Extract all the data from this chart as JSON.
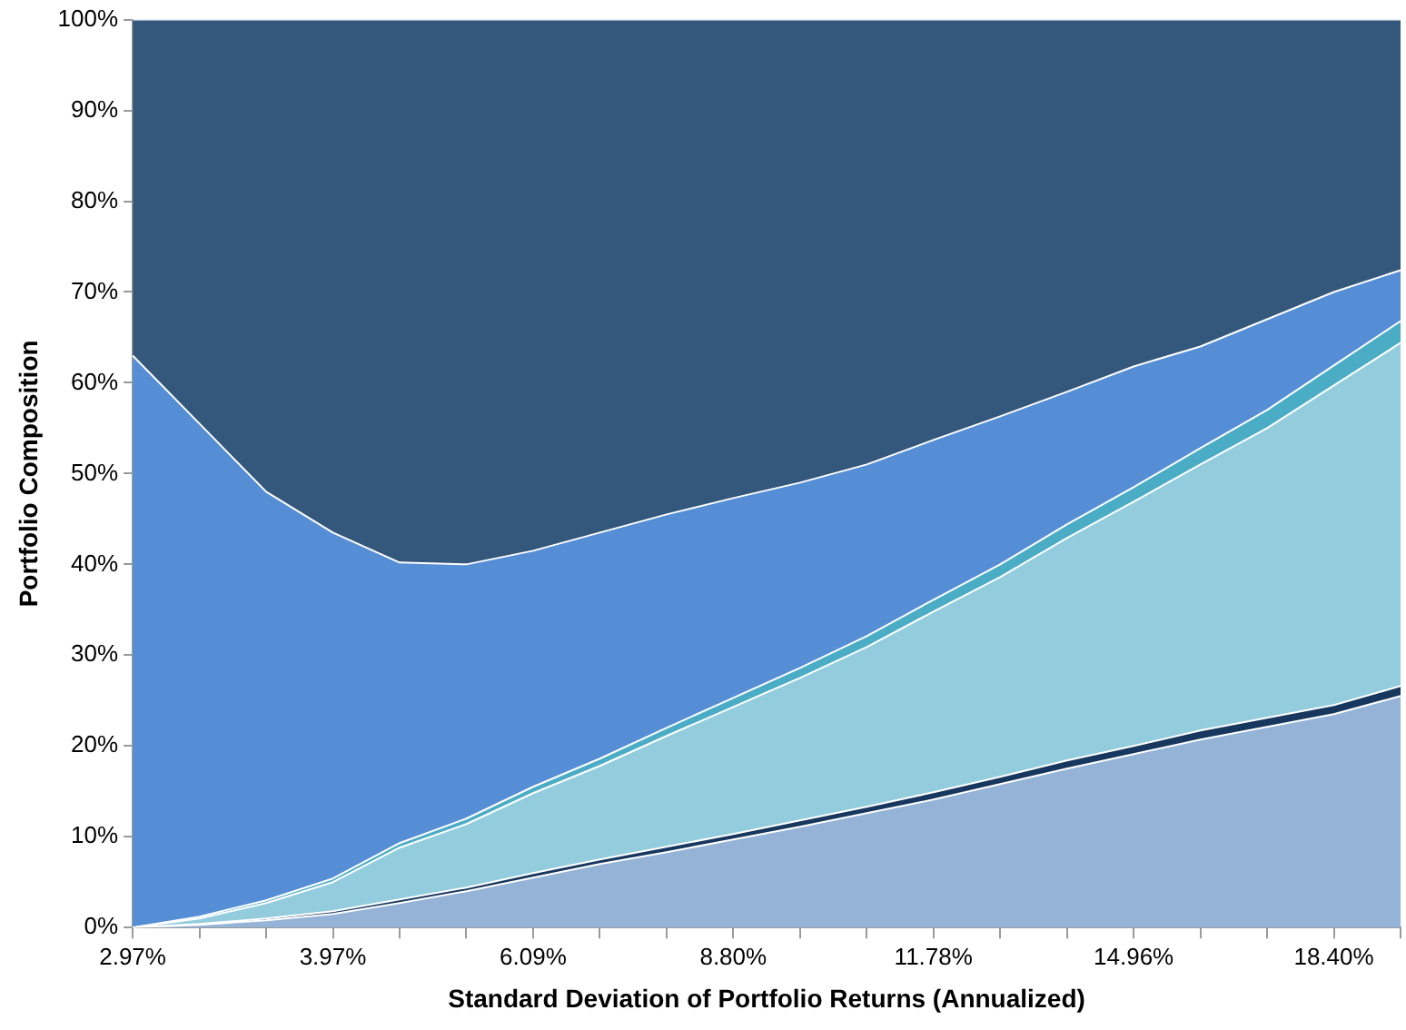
{
  "chart_data": {
    "type": "area",
    "stacked": true,
    "xlabel": "Standard Deviation of Portfolio Returns (Annualized)",
    "ylabel": "Portfolio Composition",
    "categories": [
      "2.97%",
      null,
      null,
      "3.97%",
      null,
      null,
      "6.09%",
      null,
      null,
      "8.80%",
      null,
      null,
      "11.78%",
      null,
      null,
      "14.96%",
      null,
      null,
      "18.40%",
      null
    ],
    "series": [
      {
        "color": "#95b3d7",
        "values": [
          0,
          0.3,
          0.8,
          1.5,
          2.7,
          4,
          5.5,
          7,
          8.3,
          9.7,
          11.1,
          12.6,
          14.1,
          15.8,
          17.5,
          19.1,
          20.7,
          22.1,
          23.5,
          25.5
        ]
      },
      {
        "color": "#17375e",
        "values": [
          0,
          0.1,
          0.2,
          0.3,
          0.4,
          0.4,
          0.5,
          0.5,
          0.6,
          0.6,
          0.7,
          0.7,
          0.8,
          0.8,
          0.9,
          0.9,
          1,
          1,
          1,
          1.1
        ]
      },
      {
        "color": "#93cddd",
        "values": [
          0,
          0.6,
          1.7,
          3.2,
          5.7,
          7,
          8.8,
          10.3,
          12.2,
          14,
          15.7,
          17.6,
          19.9,
          22,
          24.5,
          26.9,
          29.3,
          31.9,
          35.2,
          37.8
        ]
      },
      {
        "color": "#4bacc6",
        "values": [
          0,
          0.2,
          0.3,
          0.4,
          0.5,
          0.6,
          0.7,
          0.8,
          0.9,
          1,
          1.1,
          1.2,
          1.3,
          1.4,
          1.5,
          1.6,
          1.8,
          2,
          2.2,
          2.4
        ]
      },
      {
        "color": "#558ed5",
        "values": [
          63,
          54.3,
          45,
          38.1,
          30.9,
          28,
          26,
          24.9,
          23.5,
          22,
          20.4,
          18.9,
          17.6,
          16.3,
          14.6,
          13.3,
          11.2,
          10,
          8.1,
          5.6
        ]
      },
      {
        "color": "#34577c",
        "values": [
          37,
          44.5,
          52,
          56.5,
          59.8,
          60,
          58.5,
          56.5,
          54.5,
          52.7,
          51,
          49,
          46.3,
          43.7,
          41,
          38.2,
          36,
          33,
          30,
          27.6
        ]
      }
    ],
    "ylim": [
      0,
      100
    ],
    "yticks": [
      {
        "value": 0,
        "label": "0%"
      },
      {
        "value": 10,
        "label": "10%"
      },
      {
        "value": 20,
        "label": "20%"
      },
      {
        "value": 30,
        "label": "30%"
      },
      {
        "value": 40,
        "label": "40%"
      },
      {
        "value": 50,
        "label": "50%"
      },
      {
        "value": 60,
        "label": "60%"
      },
      {
        "value": 70,
        "label": "70%"
      },
      {
        "value": 80,
        "label": "80%"
      },
      {
        "value": 90,
        "label": "90%"
      },
      {
        "value": 100,
        "label": "100%"
      }
    ]
  }
}
